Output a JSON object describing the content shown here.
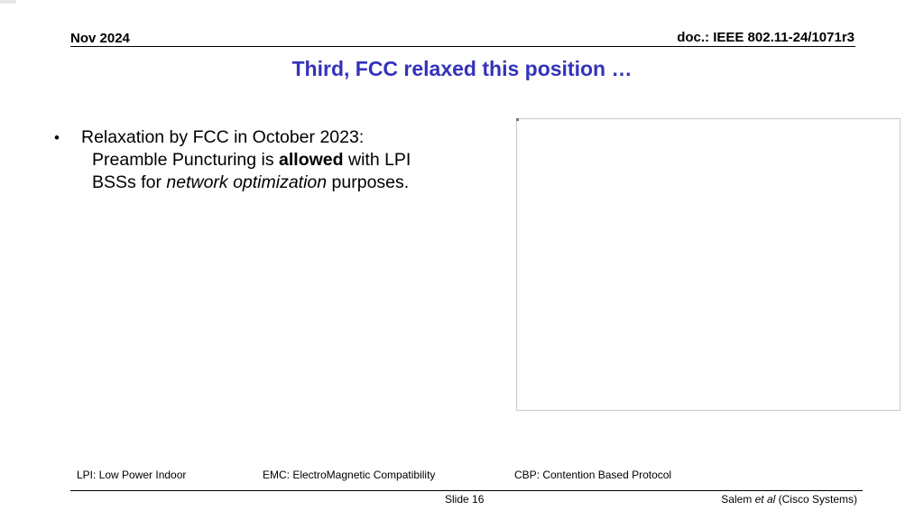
{
  "header": {
    "date": "Nov 2024",
    "doc_id": "doc.: IEEE 802.11-24/1071r3"
  },
  "slide": {
    "title": "Third, FCC relaxed this position …",
    "bullet": {
      "marker": "•",
      "line1": "Relaxation by FCC in October 2023:",
      "line2_prefix": "Preamble Puncturing is ",
      "line2_bold": "allowed",
      "line2_suffix": " with LPI",
      "line3_prefix": "BSSs for ",
      "line3_italic": "network optimization",
      "line3_suffix": " purposes."
    }
  },
  "abbreviations": [
    "LPI: Low Power Indoor",
    "EMC: ElectroMagnetic Compatibility",
    "CBP: Contention Based Protocol"
  ],
  "footer": {
    "slide_number": "Slide 16",
    "author_prefix": "Salem ",
    "author_italic": "et al",
    "author_suffix": " (Cisco Systems)"
  }
}
